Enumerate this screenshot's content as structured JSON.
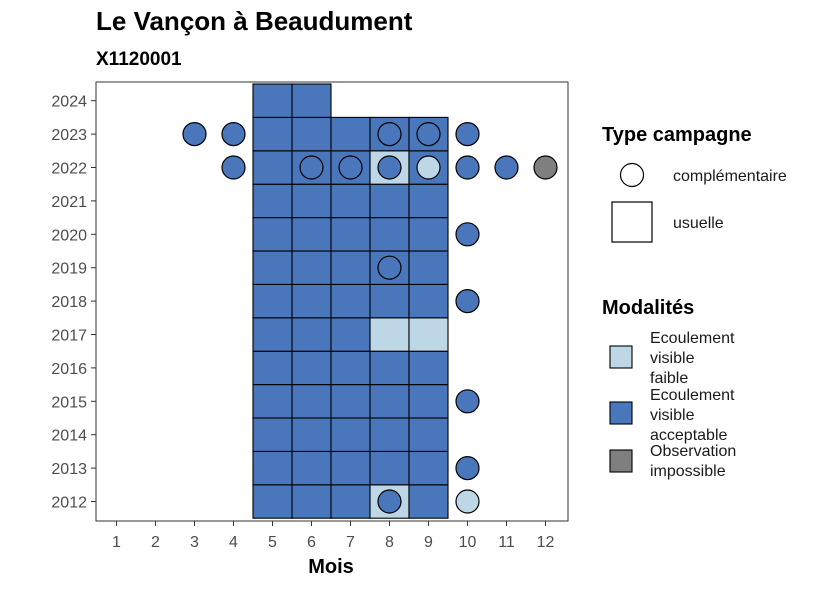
{
  "chart_data": {
    "type": "heatmap",
    "title": "Le Vançon à Beaudument",
    "subtitle": "X1120001",
    "xlabel": "Mois",
    "ylabel": "",
    "x_ticks": [
      "1",
      "2",
      "3",
      "4",
      "5",
      "6",
      "7",
      "8",
      "9",
      "10",
      "11",
      "12"
    ],
    "y_ticks": [
      "2012",
      "2013",
      "2014",
      "2015",
      "2016",
      "2017",
      "2018",
      "2019",
      "2020",
      "2021",
      "2022",
      "2023",
      "2024"
    ],
    "xlim": [
      0.5,
      12.5
    ],
    "ylim": [
      2011.5,
      2024.5
    ],
    "grid": false,
    "colors": {
      "faible": "#bdd7e7",
      "acceptable": "#4a77bb",
      "impossible": "#7f7f7f"
    },
    "legend_type": {
      "title": "Type campagne",
      "items": [
        {
          "label": "complémentaire",
          "shape": "circle"
        },
        {
          "label": "usuelle",
          "shape": "square"
        }
      ]
    },
    "legend_modalites": {
      "title": "Modalités",
      "items": [
        {
          "key": "faible",
          "lines": [
            "Ecoulement",
            "visible",
            "faible"
          ]
        },
        {
          "key": "acceptable",
          "lines": [
            "Ecoulement",
            "visible",
            "acceptable"
          ]
        },
        {
          "key": "impossible",
          "lines": [
            "Observation",
            "impossible"
          ]
        }
      ]
    },
    "usuelle": [
      {
        "year": 2012,
        "month": 5,
        "mod": "acceptable"
      },
      {
        "year": 2012,
        "month": 6,
        "mod": "acceptable"
      },
      {
        "year": 2012,
        "month": 7,
        "mod": "acceptable"
      },
      {
        "year": 2012,
        "month": 8,
        "mod": "faible"
      },
      {
        "year": 2012,
        "month": 9,
        "mod": "acceptable"
      },
      {
        "year": 2013,
        "month": 5,
        "mod": "acceptable"
      },
      {
        "year": 2013,
        "month": 6,
        "mod": "acceptable"
      },
      {
        "year": 2013,
        "month": 7,
        "mod": "acceptable"
      },
      {
        "year": 2013,
        "month": 8,
        "mod": "acceptable"
      },
      {
        "year": 2013,
        "month": 9,
        "mod": "acceptable"
      },
      {
        "year": 2014,
        "month": 5,
        "mod": "acceptable"
      },
      {
        "year": 2014,
        "month": 6,
        "mod": "acceptable"
      },
      {
        "year": 2014,
        "month": 7,
        "mod": "acceptable"
      },
      {
        "year": 2014,
        "month": 8,
        "mod": "acceptable"
      },
      {
        "year": 2014,
        "month": 9,
        "mod": "acceptable"
      },
      {
        "year": 2015,
        "month": 5,
        "mod": "acceptable"
      },
      {
        "year": 2015,
        "month": 6,
        "mod": "acceptable"
      },
      {
        "year": 2015,
        "month": 7,
        "mod": "acceptable"
      },
      {
        "year": 2015,
        "month": 8,
        "mod": "acceptable"
      },
      {
        "year": 2015,
        "month": 9,
        "mod": "acceptable"
      },
      {
        "year": 2016,
        "month": 5,
        "mod": "acceptable"
      },
      {
        "year": 2016,
        "month": 6,
        "mod": "acceptable"
      },
      {
        "year": 2016,
        "month": 7,
        "mod": "acceptable"
      },
      {
        "year": 2016,
        "month": 8,
        "mod": "acceptable"
      },
      {
        "year": 2016,
        "month": 9,
        "mod": "acceptable"
      },
      {
        "year": 2017,
        "month": 5,
        "mod": "acceptable"
      },
      {
        "year": 2017,
        "month": 6,
        "mod": "acceptable"
      },
      {
        "year": 2017,
        "month": 7,
        "mod": "acceptable"
      },
      {
        "year": 2017,
        "month": 8,
        "mod": "faible"
      },
      {
        "year": 2017,
        "month": 9,
        "mod": "faible"
      },
      {
        "year": 2018,
        "month": 5,
        "mod": "acceptable"
      },
      {
        "year": 2018,
        "month": 6,
        "mod": "acceptable"
      },
      {
        "year": 2018,
        "month": 7,
        "mod": "acceptable"
      },
      {
        "year": 2018,
        "month": 8,
        "mod": "acceptable"
      },
      {
        "year": 2018,
        "month": 9,
        "mod": "acceptable"
      },
      {
        "year": 2019,
        "month": 5,
        "mod": "acceptable"
      },
      {
        "year": 2019,
        "month": 6,
        "mod": "acceptable"
      },
      {
        "year": 2019,
        "month": 7,
        "mod": "acceptable"
      },
      {
        "year": 2019,
        "month": 8,
        "mod": "acceptable"
      },
      {
        "year": 2019,
        "month": 9,
        "mod": "acceptable"
      },
      {
        "year": 2020,
        "month": 5,
        "mod": "acceptable"
      },
      {
        "year": 2020,
        "month": 6,
        "mod": "acceptable"
      },
      {
        "year": 2020,
        "month": 7,
        "mod": "acceptable"
      },
      {
        "year": 2020,
        "month": 8,
        "mod": "acceptable"
      },
      {
        "year": 2020,
        "month": 9,
        "mod": "acceptable"
      },
      {
        "year": 2021,
        "month": 5,
        "mod": "acceptable"
      },
      {
        "year": 2021,
        "month": 6,
        "mod": "acceptable"
      },
      {
        "year": 2021,
        "month": 7,
        "mod": "acceptable"
      },
      {
        "year": 2021,
        "month": 8,
        "mod": "acceptable"
      },
      {
        "year": 2021,
        "month": 9,
        "mod": "acceptable"
      },
      {
        "year": 2022,
        "month": 5,
        "mod": "acceptable"
      },
      {
        "year": 2022,
        "month": 6,
        "mod": "acceptable"
      },
      {
        "year": 2022,
        "month": 7,
        "mod": "acceptable"
      },
      {
        "year": 2022,
        "month": 8,
        "mod": "faible"
      },
      {
        "year": 2022,
        "month": 9,
        "mod": "acceptable"
      },
      {
        "year": 2023,
        "month": 5,
        "mod": "acceptable"
      },
      {
        "year": 2023,
        "month": 6,
        "mod": "acceptable"
      },
      {
        "year": 2023,
        "month": 7,
        "mod": "acceptable"
      },
      {
        "year": 2023,
        "month": 8,
        "mod": "acceptable"
      },
      {
        "year": 2023,
        "month": 9,
        "mod": "acceptable"
      },
      {
        "year": 2024,
        "month": 5,
        "mod": "acceptable"
      },
      {
        "year": 2024,
        "month": 6,
        "mod": "acceptable"
      }
    ],
    "complementaire": [
      {
        "year": 2012,
        "month": 8,
        "mod": "acceptable"
      },
      {
        "year": 2012,
        "month": 10,
        "mod": "faible"
      },
      {
        "year": 2013,
        "month": 10,
        "mod": "acceptable"
      },
      {
        "year": 2015,
        "month": 10,
        "mod": "acceptable"
      },
      {
        "year": 2018,
        "month": 10,
        "mod": "acceptable"
      },
      {
        "year": 2019,
        "month": 8,
        "mod": "acceptable"
      },
      {
        "year": 2020,
        "month": 10,
        "mod": "acceptable"
      },
      {
        "year": 2022,
        "month": 4,
        "mod": "acceptable"
      },
      {
        "year": 2022,
        "month": 6,
        "mod": "acceptable"
      },
      {
        "year": 2022,
        "month": 7,
        "mod": "acceptable"
      },
      {
        "year": 2022,
        "month": 8,
        "mod": "acceptable"
      },
      {
        "year": 2022,
        "month": 9,
        "mod": "faible"
      },
      {
        "year": 2022,
        "month": 10,
        "mod": "acceptable"
      },
      {
        "year": 2022,
        "month": 11,
        "mod": "acceptable"
      },
      {
        "year": 2022,
        "month": 12,
        "mod": "impossible"
      },
      {
        "year": 2023,
        "month": 3,
        "mod": "acceptable"
      },
      {
        "year": 2023,
        "month": 4,
        "mod": "acceptable"
      },
      {
        "year": 2023,
        "month": 8,
        "mod": "acceptable"
      },
      {
        "year": 2023,
        "month": 9,
        "mod": "acceptable"
      },
      {
        "year": 2023,
        "month": 10,
        "mod": "acceptable"
      }
    ]
  }
}
